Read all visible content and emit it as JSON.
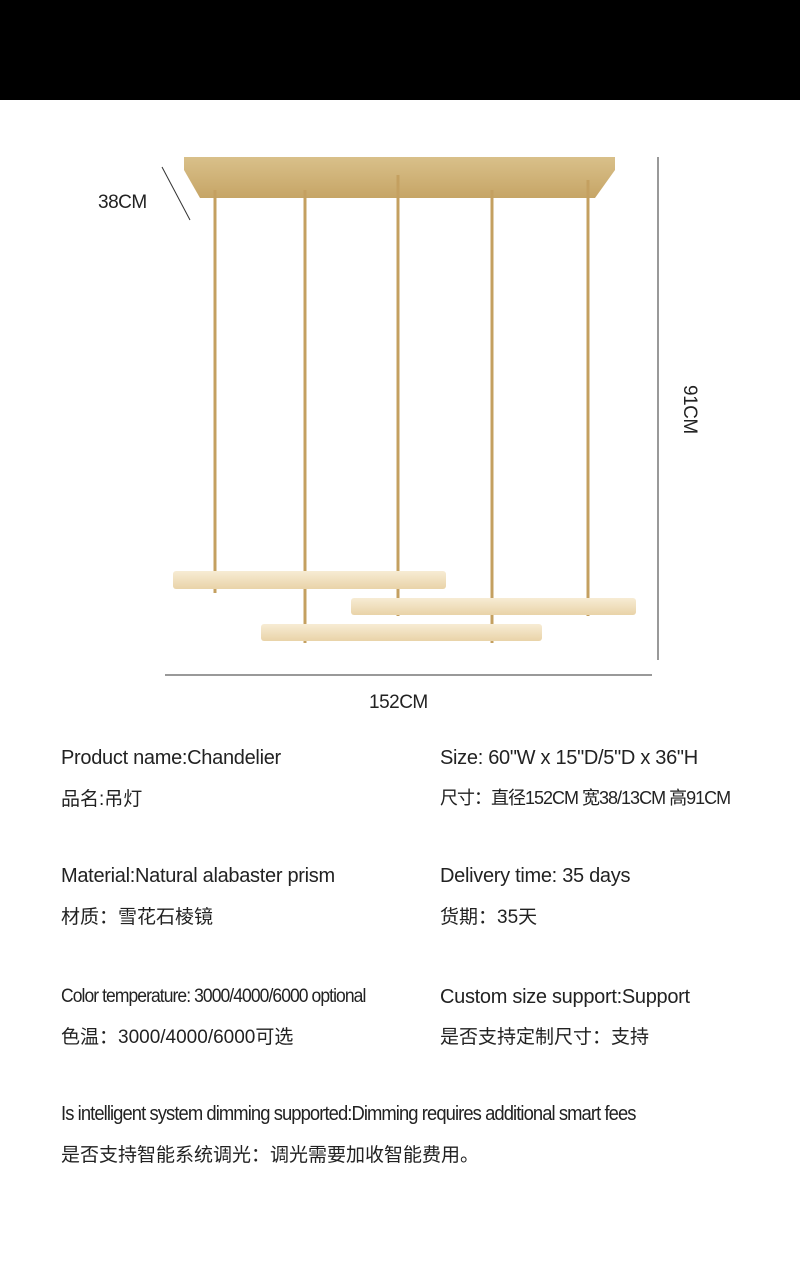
{
  "dimensions": {
    "depth": "38CM",
    "height": "91CM",
    "width": "152CM"
  },
  "colors": {
    "header": "#000000",
    "brass": "#c9a96a",
    "alabaster": "#f3e3c3"
  },
  "specs": {
    "product_name_en": "Product name:Chandelier",
    "product_name_zh": "品名:吊灯",
    "size_en": "Size: 60\"W x 15\"D/5\"D x 36\"H",
    "size_zh": "尺寸：直径152CM 宽38/13CM   高91CM",
    "material_en": "Material:Natural alabaster prism",
    "material_zh": "材质：雪花石棱镜",
    "delivery_en": "Delivery time: 35 days",
    "delivery_zh": "货期：35天",
    "color_temp_en": "Color temperature: 3000/4000/6000 optional",
    "color_temp_zh": "色温：3000/4000/6000可选",
    "custom_en": "Custom size support:Support",
    "custom_zh": "是否支持定制尺寸：支持",
    "dimming_en": "Is intelligent system dimming supported:Dimming requires additional smart fees",
    "dimming_zh": "是否支持智能系统调光：调光需要加收智能费用。"
  }
}
